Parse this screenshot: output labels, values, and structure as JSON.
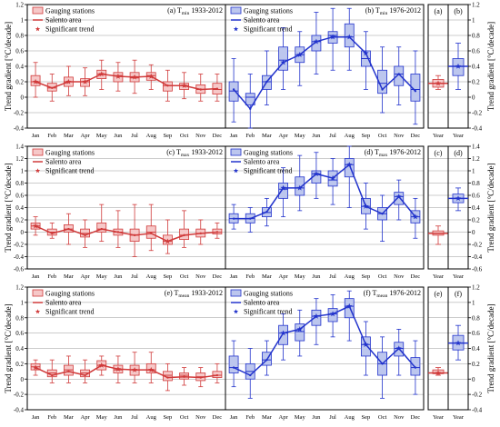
{
  "colors": {
    "red": "#d03a3a",
    "red_fill": "#f6c8c8",
    "blue": "#2233cc",
    "blue_fill": "#bcc6ee",
    "frame": "#000000",
    "grid": "#999999"
  },
  "y_label": "Trend gradient [°C/decade]",
  "months": [
    "Jan",
    "Feb",
    "Mar",
    "Apr",
    "May",
    "Jun",
    "Jul",
    "Aug",
    "Sep",
    "Oct",
    "Nov",
    "Dec"
  ],
  "year_tick": "Year",
  "legend": {
    "stations": "Gauging stations",
    "area": "Salento area",
    "signif": "Significant trend"
  },
  "chart_data": [
    {
      "type": "box",
      "row": 0,
      "ylim": [
        -0.4,
        1.2
      ],
      "yticks": [
        -0.4,
        -0.2,
        0,
        0.2,
        0.4,
        0.6,
        0.8,
        1,
        1.2
      ],
      "left": {
        "title_letter": "(a) T",
        "title_sub": "min",
        "title_period": " 1933-2012",
        "boxes": [
          [
            0.0,
            0.15,
            0.2,
            0.28,
            0.45
          ],
          [
            -0.05,
            0.08,
            0.12,
            0.18,
            0.3
          ],
          [
            0.02,
            0.14,
            0.2,
            0.26,
            0.4
          ],
          [
            0.02,
            0.14,
            0.2,
            0.24,
            0.38
          ],
          [
            0.1,
            0.24,
            0.3,
            0.35,
            0.48
          ],
          [
            0.08,
            0.2,
            0.28,
            0.32,
            0.45
          ],
          [
            0.05,
            0.2,
            0.25,
            0.32,
            0.48
          ],
          [
            0.1,
            0.22,
            0.28,
            0.32,
            0.42
          ],
          [
            -0.05,
            0.08,
            0.15,
            0.2,
            0.35
          ],
          [
            -0.02,
            0.1,
            0.15,
            0.18,
            0.32
          ],
          [
            -0.05,
            0.05,
            0.1,
            0.16,
            0.3
          ],
          [
            -0.05,
            0.04,
            0.1,
            0.18,
            0.3
          ]
        ],
        "area": [
          0.2,
          0.12,
          0.2,
          0.2,
          0.3,
          0.27,
          0.26,
          0.27,
          0.15,
          0.15,
          0.1,
          0.11
        ],
        "significant": [
          true,
          false,
          true,
          true,
          true,
          true,
          true,
          true,
          false,
          true,
          false,
          false
        ]
      },
      "middle": {
        "title_letter": "(b) T",
        "title_sub": "min",
        "title_period": " 1976-2012",
        "boxes": [
          [
            -0.32,
            -0.05,
            0.08,
            0.2,
            0.5
          ],
          [
            -0.4,
            -0.1,
            0.0,
            0.05,
            0.3
          ],
          [
            -0.1,
            0.1,
            0.2,
            0.28,
            0.6
          ],
          [
            0.1,
            0.35,
            0.48,
            0.65,
            0.9
          ],
          [
            0.15,
            0.45,
            0.55,
            0.65,
            0.85
          ],
          [
            0.3,
            0.6,
            0.72,
            0.8,
            1.1
          ],
          [
            0.35,
            0.7,
            0.8,
            0.85,
            1.15
          ],
          [
            0.35,
            0.65,
            0.78,
            0.95,
            1.15
          ],
          [
            0.1,
            0.4,
            0.5,
            0.6,
            0.85
          ],
          [
            -0.2,
            0.05,
            0.18,
            0.35,
            0.65
          ],
          [
            -0.1,
            0.15,
            0.3,
            0.4,
            0.65
          ],
          [
            -0.35,
            -0.05,
            0.1,
            0.3,
            0.6
          ]
        ],
        "area": [
          0.1,
          -0.15,
          0.2,
          0.45,
          0.55,
          0.72,
          0.78,
          0.78,
          0.57,
          0.1,
          0.3,
          0.08
        ],
        "significant": [
          false,
          false,
          false,
          true,
          true,
          true,
          true,
          true,
          true,
          false,
          false,
          false
        ]
      },
      "right": {
        "panels": [
          {
            "letter": "(a)",
            "color": "red",
            "box": [
              0.1,
              0.13,
              0.18,
              0.23,
              0.28
            ],
            "area": 0.18,
            "significant": true
          },
          {
            "letter": "(b)",
            "color": "blue",
            "box": [
              0.1,
              0.28,
              0.4,
              0.5,
              0.7
            ],
            "area": 0.4,
            "significant": true
          }
        ]
      }
    },
    {
      "type": "box",
      "row": 1,
      "ylim": [
        -0.6,
        1.4
      ],
      "yticks": [
        -0.6,
        -0.4,
        -0.2,
        0,
        0.2,
        0.4,
        0.6,
        0.8,
        1,
        1.2,
        1.4
      ],
      "left": {
        "title_letter": "(c) T",
        "title_sub": "max",
        "title_period": " 1933-2012",
        "boxes": [
          [
            -0.05,
            0.05,
            0.1,
            0.15,
            0.25
          ],
          [
            -0.1,
            -0.05,
            0.0,
            0.05,
            0.15
          ],
          [
            -0.2,
            0.0,
            0.05,
            0.12,
            0.3
          ],
          [
            -0.25,
            -0.08,
            -0.02,
            0.05,
            0.2
          ],
          [
            -0.15,
            0.0,
            0.05,
            0.15,
            0.45
          ],
          [
            -0.25,
            -0.05,
            0.0,
            0.05,
            0.35
          ],
          [
            -0.4,
            -0.15,
            -0.05,
            0.05,
            0.45
          ],
          [
            -0.3,
            -0.1,
            0.0,
            0.1,
            0.45
          ],
          [
            -0.35,
            -0.2,
            -0.15,
            -0.05,
            0.2
          ],
          [
            -0.25,
            -0.12,
            -0.05,
            0.05,
            0.35
          ],
          [
            -0.2,
            -0.08,
            -0.02,
            0.05,
            0.2
          ],
          [
            -0.1,
            -0.03,
            0.0,
            0.05,
            0.15
          ]
        ],
        "area": [
          0.1,
          -0.02,
          0.05,
          -0.05,
          0.05,
          0.0,
          -0.05,
          -0.02,
          -0.15,
          -0.05,
          -0.02,
          0.0
        ],
        "significant": [
          true,
          false,
          false,
          false,
          false,
          false,
          false,
          false,
          true,
          false,
          false,
          false
        ]
      },
      "middle": {
        "title_letter": "(d) T",
        "title_sub": "max",
        "title_period": " 1976-2012",
        "boxes": [
          [
            0.05,
            0.15,
            0.22,
            0.3,
            0.45
          ],
          [
            0.0,
            0.15,
            0.22,
            0.3,
            0.4
          ],
          [
            0.1,
            0.25,
            0.32,
            0.4,
            0.55
          ],
          [
            0.25,
            0.55,
            0.7,
            0.8,
            1.05
          ],
          [
            0.35,
            0.6,
            0.72,
            0.9,
            1.25
          ],
          [
            0.55,
            0.8,
            0.95,
            1.0,
            1.3
          ],
          [
            0.45,
            0.75,
            0.85,
            1.0,
            1.2
          ],
          [
            0.4,
            0.9,
            1.1,
            1.2,
            1.4
          ],
          [
            0.05,
            0.3,
            0.42,
            0.55,
            0.8
          ],
          [
            -0.15,
            0.2,
            0.3,
            0.4,
            0.6
          ],
          [
            0.2,
            0.45,
            0.58,
            0.65,
            0.85
          ],
          [
            -0.1,
            0.15,
            0.25,
            0.35,
            0.55
          ]
        ],
        "area": [
          0.22,
          0.22,
          0.33,
          0.72,
          0.72,
          0.95,
          0.88,
          1.1,
          0.42,
          0.3,
          0.58,
          0.25
        ],
        "significant": [
          false,
          false,
          false,
          true,
          true,
          true,
          true,
          true,
          true,
          false,
          true,
          true
        ]
      },
      "right": {
        "panels": [
          {
            "letter": "(c)",
            "color": "red",
            "box": [
              -0.2,
              -0.05,
              0.0,
              0.02,
              0.1
            ],
            "area": -0.02,
            "significant": false
          },
          {
            "letter": "(d)",
            "color": "blue",
            "box": [
              0.35,
              0.48,
              0.55,
              0.62,
              0.72
            ],
            "area": 0.55,
            "significant": true
          }
        ]
      }
    },
    {
      "type": "box",
      "row": 2,
      "ylim": [
        -0.4,
        1.2
      ],
      "yticks": [
        -0.4,
        -0.2,
        0,
        0.2,
        0.4,
        0.6,
        0.8,
        1,
        1.2
      ],
      "left": {
        "title_letter": "(e) T",
        "title_sub": "mean",
        "title_period": " 1933-2012",
        "boxes": [
          [
            0.05,
            0.12,
            0.16,
            0.2,
            0.25
          ],
          [
            -0.05,
            0.03,
            0.08,
            0.12,
            0.25
          ],
          [
            -0.05,
            0.05,
            0.12,
            0.18,
            0.3
          ],
          [
            -0.05,
            0.03,
            0.08,
            0.12,
            0.25
          ],
          [
            0.05,
            0.12,
            0.18,
            0.24,
            0.3
          ],
          [
            -0.05,
            0.08,
            0.12,
            0.18,
            0.3
          ],
          [
            -0.05,
            0.05,
            0.12,
            0.18,
            0.35
          ],
          [
            -0.05,
            0.08,
            0.12,
            0.2,
            0.35
          ],
          [
            -0.15,
            -0.02,
            0.05,
            0.1,
            0.2
          ],
          [
            -0.08,
            0.0,
            0.05,
            0.08,
            0.15
          ],
          [
            -0.1,
            -0.02,
            0.03,
            0.08,
            0.15
          ],
          [
            -0.05,
            0.02,
            0.05,
            0.1,
            0.2
          ]
        ],
        "area": [
          0.15,
          0.05,
          0.1,
          0.05,
          0.18,
          0.13,
          0.12,
          0.12,
          0.02,
          0.03,
          0.02,
          0.05
        ],
        "significant": [
          true,
          false,
          false,
          false,
          true,
          true,
          true,
          true,
          false,
          false,
          false,
          false
        ]
      },
      "middle": {
        "title_letter": "(f) T",
        "title_sub": "mean",
        "title_period": " 1976-2012",
        "boxes": [
          [
            -0.1,
            0.08,
            0.15,
            0.3,
            0.5
          ],
          [
            -0.25,
            0.0,
            0.1,
            0.2,
            0.4
          ],
          [
            0.05,
            0.18,
            0.25,
            0.35,
            0.5
          ],
          [
            0.25,
            0.45,
            0.6,
            0.7,
            0.85
          ],
          [
            0.3,
            0.5,
            0.62,
            0.72,
            0.9
          ],
          [
            0.45,
            0.7,
            0.82,
            0.9,
            1.05
          ],
          [
            0.55,
            0.75,
            0.85,
            0.92,
            1.1
          ],
          [
            0.5,
            0.8,
            0.95,
            1.05,
            1.15
          ],
          [
            0.05,
            0.3,
            0.45,
            0.55,
            0.75
          ],
          [
            -0.25,
            0.05,
            0.2,
            0.35,
            0.55
          ],
          [
            0.05,
            0.3,
            0.4,
            0.48,
            0.65
          ],
          [
            -0.2,
            0.05,
            0.15,
            0.28,
            0.5
          ]
        ],
        "area": [
          0.15,
          0.05,
          0.25,
          0.6,
          0.65,
          0.82,
          0.85,
          0.95,
          0.45,
          0.2,
          0.4,
          0.15
        ],
        "significant": [
          false,
          false,
          false,
          true,
          true,
          true,
          true,
          true,
          true,
          false,
          true,
          false
        ]
      },
      "right": {
        "panels": [
          {
            "letter": "(e)",
            "color": "red",
            "box": [
              0.05,
              0.07,
              0.09,
              0.12,
              0.15
            ],
            "area": 0.08,
            "significant": true
          },
          {
            "letter": "(f)",
            "color": "blue",
            "box": [
              0.25,
              0.38,
              0.47,
              0.57,
              0.7
            ],
            "area": 0.47,
            "significant": true
          }
        ]
      }
    }
  ]
}
